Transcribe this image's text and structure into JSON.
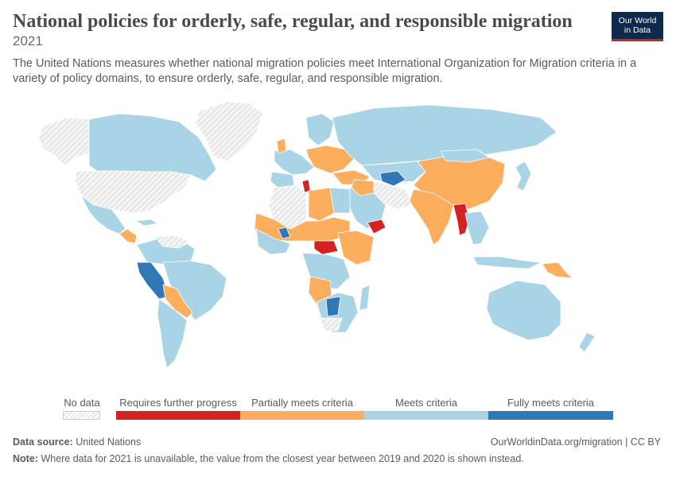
{
  "header": {
    "title": "National policies for orderly, safe, regular, and responsible migration",
    "year": "2021",
    "description": "The United Nations measures whether national migration policies meet International Organization for Migration criteria in a variety of policy domains, to ensure orderly, safe, regular, and responsible migration."
  },
  "logo": {
    "line1": "Our World",
    "line2": "in Data"
  },
  "colors": {
    "no_data": "#e8e8e8",
    "requires_further_progress": "#d42121",
    "partially_meets": "#fcad5e",
    "meets": "#a8d4e6",
    "fully_meets": "#2f78b5",
    "border": "#ffffff"
  },
  "legend": {
    "no_data": "No data",
    "requires_further_progress": "Requires further progress",
    "partially_meets": "Partially meets criteria",
    "meets": "Meets criteria",
    "fully_meets": "Fully meets criteria"
  },
  "footer": {
    "source_label": "Data source:",
    "source_value": "United Nations",
    "url": "OurWorldinData.org/migration | CC BY",
    "note_label": "Note:",
    "note_value": "Where data for 2021 is unavailable, the value from the closest year between 2019 and 2020 is shown instead."
  }
}
